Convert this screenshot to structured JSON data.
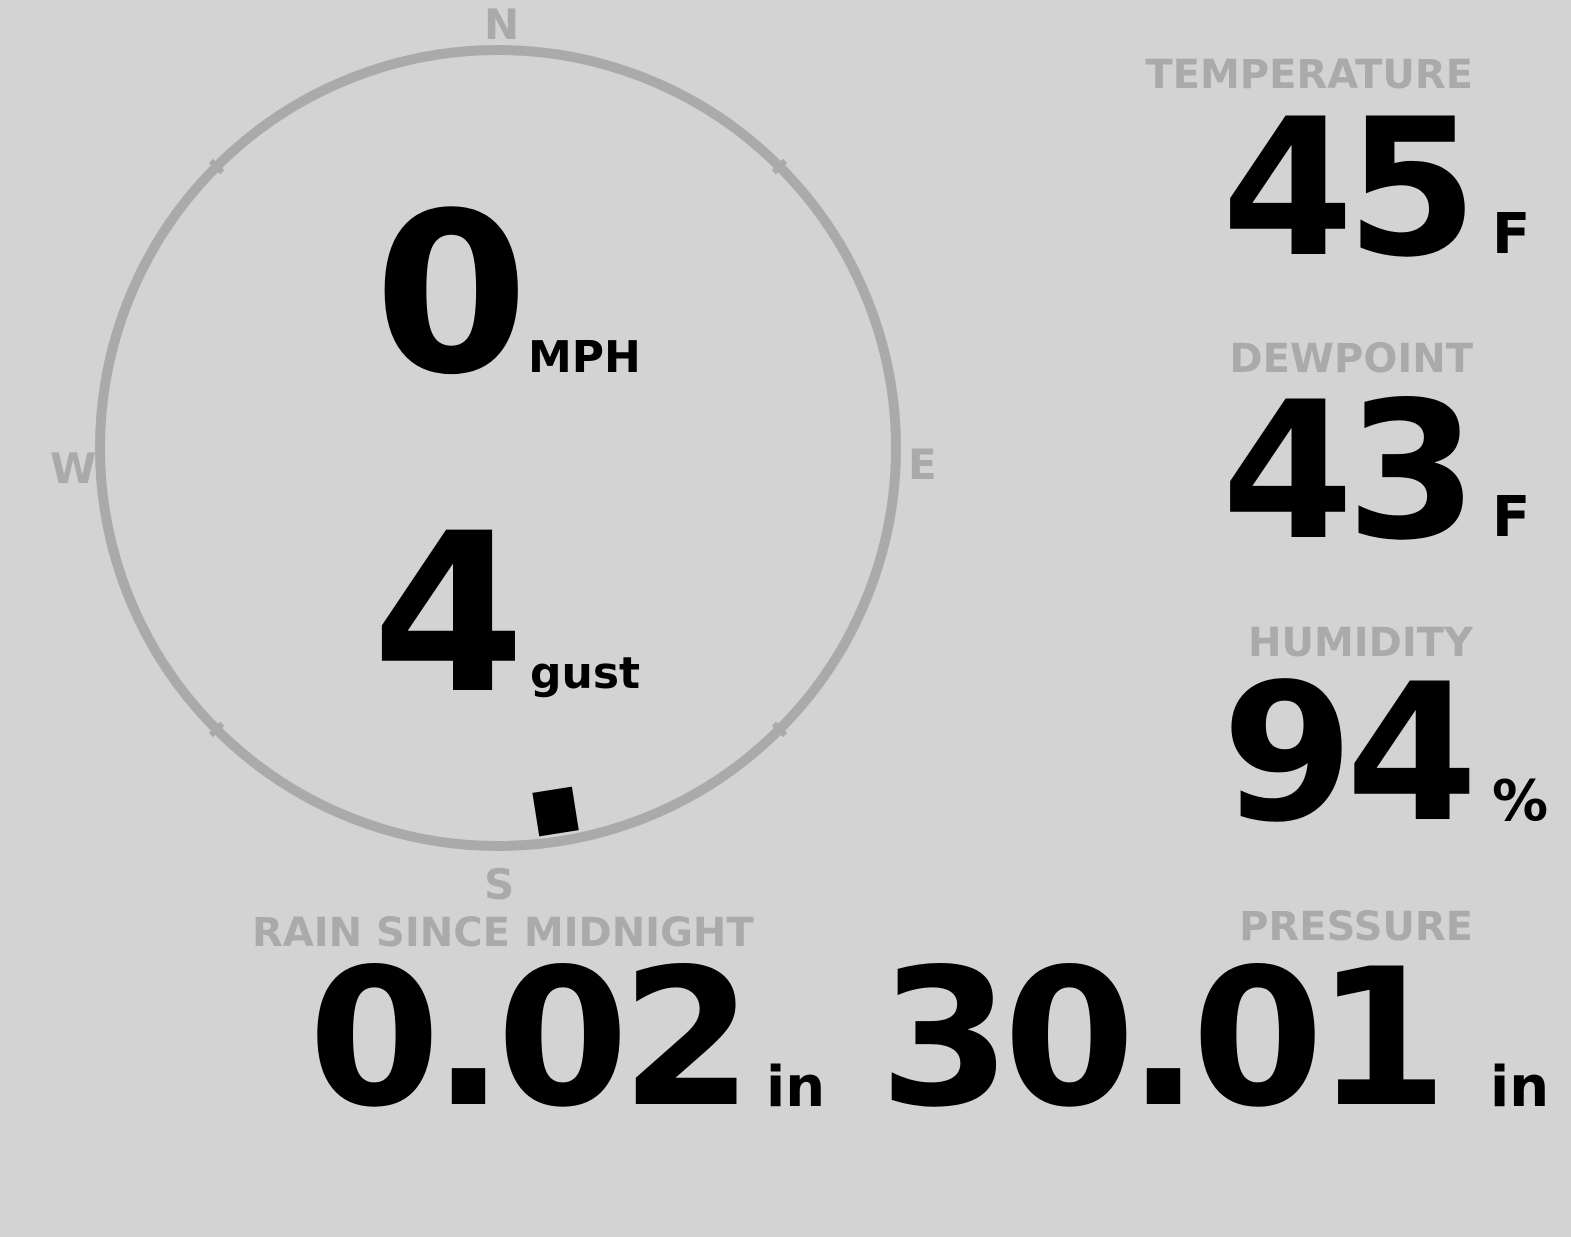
{
  "colors": {
    "background": "#d3d3d3",
    "label": "#aaaaaa",
    "value": "#000000",
    "compass_ring": "#aaaaaa",
    "direction_marker": "#000000"
  },
  "wind": {
    "speed": "0",
    "speed_unit": "MPH",
    "gust": "4",
    "gust_unit": "gust",
    "direction_degrees": 171,
    "compass": {
      "n": "N",
      "e": "E",
      "s": "S",
      "w": "W"
    }
  },
  "temperature": {
    "label": "TEMPERATURE",
    "value": "45",
    "unit": "F"
  },
  "dewpoint": {
    "label": "DEWPOINT",
    "value": "43",
    "unit": "F"
  },
  "humidity": {
    "label": "HUMIDITY",
    "value": "94",
    "unit": "%"
  },
  "rain": {
    "label": "RAIN SINCE MIDNIGHT",
    "value": "0.02",
    "unit": "in"
  },
  "pressure": {
    "label": "PRESSURE",
    "value": "30.01",
    "unit": "in"
  }
}
